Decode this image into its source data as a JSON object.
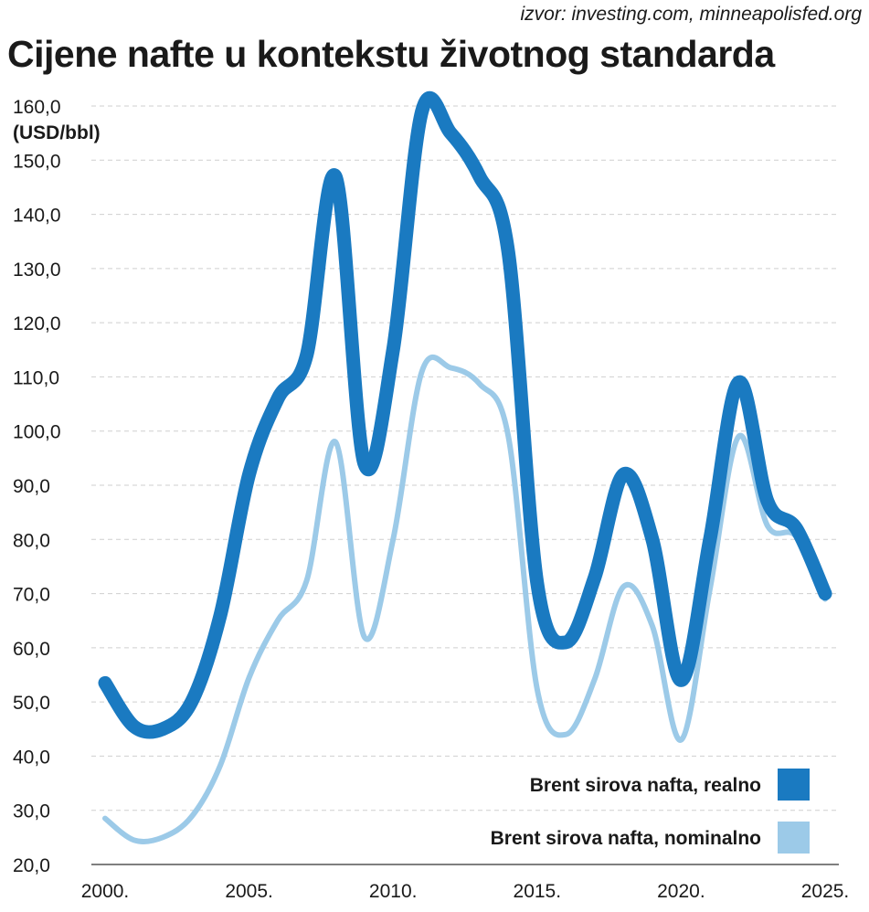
{
  "header": {
    "source": "izvor: investing.com, minneapolisfed.org",
    "title": "Cijene nafte u kontekstu životnog standarda"
  },
  "chart_data": {
    "type": "line",
    "title": "Cijene nafte u kontekstu životnog standarda",
    "ylabel": "(USD/bbl)",
    "xlabel": "",
    "ylim": [
      20,
      160
    ],
    "xlim": [
      2000,
      2025
    ],
    "yticks": [
      "20,0",
      "30,0",
      "40,0",
      "50,0",
      "60,0",
      "70,0",
      "80,0",
      "90,0",
      "100,0",
      "110,0",
      "120,0",
      "130,0",
      "140,0",
      "150,0",
      "160,0"
    ],
    "xticks": [
      "2000.",
      "2005.",
      "2010.",
      "2015.",
      "2020.",
      "2025."
    ],
    "grid": true,
    "legend_position": "bottom-right",
    "series": [
      {
        "name": "Brent sirova nafta, realno",
        "color": "#1a7ac1",
        "x": [
          2000,
          2001,
          2002,
          2003,
          2004,
          2005,
          2006,
          2007,
          2008,
          2009,
          2010,
          2011,
          2012,
          2013,
          2014,
          2015,
          2016,
          2017,
          2018,
          2019,
          2020,
          2021,
          2022,
          2023,
          2024,
          2025
        ],
        "values": [
          53.5,
          45.5,
          45,
          50,
          66,
          92,
          106,
          114,
          147,
          94,
          115,
          159,
          155,
          147,
          133,
          72,
          61,
          73,
          92,
          80,
          54,
          80,
          109,
          87,
          82,
          70
        ]
      },
      {
        "name": "Brent sirova nafta, nominalno",
        "color": "#9ccae8",
        "x": [
          2000,
          2001,
          2002,
          2003,
          2004,
          2005,
          2006,
          2007,
          2008,
          2009,
          2010,
          2011,
          2012,
          2013,
          2014,
          2015,
          2016,
          2017,
          2018,
          2019,
          2020,
          2021,
          2022,
          2023,
          2024,
          2025
        ],
        "values": [
          28.5,
          24.5,
          25,
          28.8,
          38.3,
          54.5,
          65.1,
          72.4,
          98,
          62,
          80,
          111,
          111.7,
          108.7,
          99,
          52.4,
          44,
          54.2,
          71.3,
          64,
          43,
          70.8,
          99,
          82.5,
          80.5,
          69
        ]
      }
    ]
  }
}
